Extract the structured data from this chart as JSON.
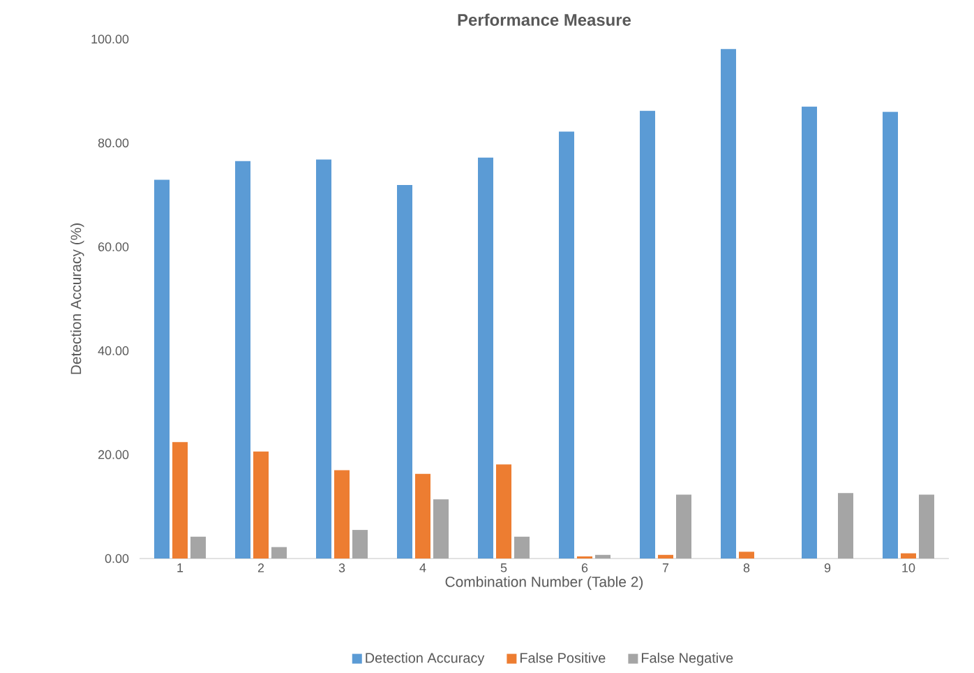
{
  "chart_data": {
    "type": "bar",
    "title": "Performance Measure",
    "xlabel": "Combination Number (Table 2)",
    "ylabel": "Detection Accuracy (%)",
    "categories": [
      "1",
      "2",
      "3",
      "4",
      "5",
      "6",
      "7",
      "8",
      "9",
      "10"
    ],
    "series": [
      {
        "name": "Detection Accuracy",
        "color": "#5b9bd5",
        "values": [
          72.9,
          76.5,
          76.8,
          71.9,
          77.2,
          82.2,
          86.2,
          98.1,
          87.0,
          86.0
        ]
      },
      {
        "name": "False Positive",
        "color": "#ed7d31",
        "values": [
          22.4,
          20.6,
          17.0,
          16.3,
          18.1,
          0.4,
          0.7,
          1.3,
          0,
          1.0
        ]
      },
      {
        "name": "False Negative",
        "color": "#a5a5a5",
        "values": [
          4.2,
          2.2,
          5.5,
          11.4,
          4.2,
          0.7,
          12.3,
          0,
          12.6,
          12.3
        ]
      }
    ],
    "ylim": [
      0,
      100
    ],
    "yticks": [
      {
        "value": 0,
        "label": "0.00"
      },
      {
        "value": 20,
        "label": "20.00"
      },
      {
        "value": 40,
        "label": "40.00"
      },
      {
        "value": 60,
        "label": "60.00"
      },
      {
        "value": 80,
        "label": "80.00"
      },
      {
        "value": 100,
        "label": "100.00"
      }
    ],
    "legend": "bottom"
  }
}
